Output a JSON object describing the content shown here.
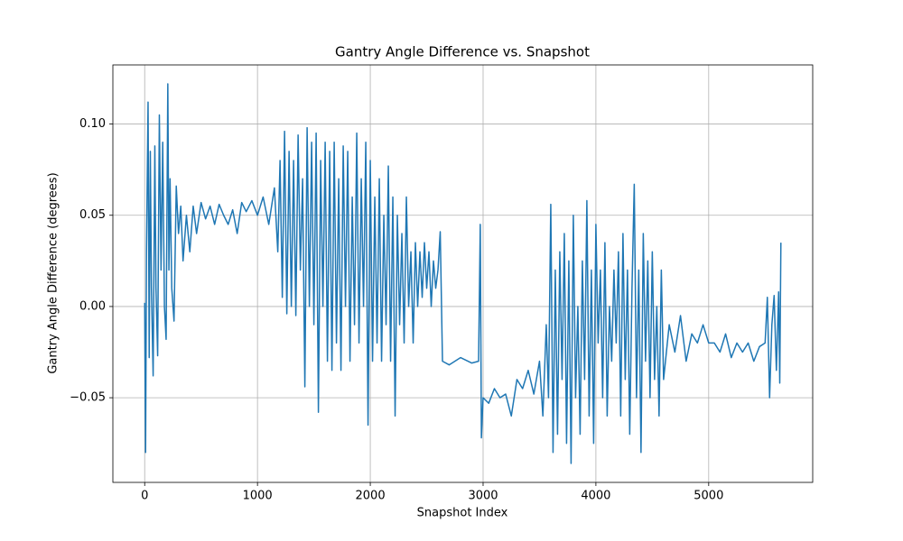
{
  "chart_data": {
    "type": "line",
    "title": "Gantry Angle Difference vs. Snapshot",
    "x_label": "Snapshot Index",
    "y_label": "Gantry Angle Difference (degrees)",
    "grid": true,
    "xlim": [
      -282,
      5922
    ],
    "ylim": [
      -0.0964,
      0.1324
    ],
    "xticks": [
      0,
      1000,
      2000,
      3000,
      4000,
      5000
    ],
    "yticks": [
      {
        "value": -0.05,
        "label": "−0.05"
      },
      {
        "value": 0,
        "label": "0.00"
      },
      {
        "value": 0.05,
        "label": "0.05"
      },
      {
        "value": 0.1,
        "label": "0.10"
      }
    ],
    "x": [
      0,
      8,
      16,
      30,
      40,
      50,
      60,
      75,
      90,
      100,
      115,
      130,
      145,
      160,
      175,
      190,
      205,
      215,
      225,
      240,
      260,
      280,
      300,
      320,
      340,
      370,
      400,
      430,
      460,
      500,
      540,
      580,
      620,
      660,
      700,
      740,
      780,
      820,
      860,
      900,
      950,
      1000,
      1050,
      1100,
      1150,
      1180,
      1200,
      1220,
      1240,
      1260,
      1280,
      1300,
      1320,
      1340,
      1360,
      1380,
      1400,
      1420,
      1440,
      1460,
      1480,
      1500,
      1520,
      1540,
      1560,
      1580,
      1600,
      1620,
      1640,
      1660,
      1680,
      1700,
      1720,
      1740,
      1760,
      1780,
      1800,
      1820,
      1840,
      1860,
      1880,
      1900,
      1920,
      1940,
      1960,
      1980,
      2000,
      2020,
      2040,
      2060,
      2080,
      2100,
      2120,
      2140,
      2160,
      2180,
      2200,
      2220,
      2240,
      2260,
      2280,
      2300,
      2320,
      2340,
      2360,
      2380,
      2400,
      2420,
      2440,
      2460,
      2480,
      2500,
      2520,
      2540,
      2560,
      2580,
      2600,
      2620,
      2640,
      2700,
      2800,
      2900,
      2960,
      2975,
      2985,
      3000,
      3050,
      3100,
      3150,
      3200,
      3250,
      3300,
      3350,
      3400,
      3450,
      3500,
      3530,
      3560,
      3580,
      3600,
      3620,
      3640,
      3660,
      3680,
      3700,
      3720,
      3740,
      3760,
      3780,
      3800,
      3820,
      3840,
      3860,
      3880,
      3900,
      3920,
      3940,
      3960,
      3980,
      4000,
      4020,
      4040,
      4060,
      4080,
      4100,
      4120,
      4140,
      4160,
      4180,
      4200,
      4220,
      4240,
      4260,
      4280,
      4300,
      4320,
      4340,
      4360,
      4380,
      4400,
      4420,
      4440,
      4460,
      4480,
      4500,
      4520,
      4540,
      4560,
      4580,
      4600,
      4650,
      4700,
      4750,
      4800,
      4850,
      4900,
      4950,
      5000,
      5050,
      5100,
      5150,
      5200,
      5250,
      5300,
      5350,
      5400,
      5450,
      5500,
      5520,
      5540,
      5560,
      5580,
      5600,
      5620,
      5630,
      5640
    ],
    "series": [
      {
        "color": "#1f77b4",
        "values": [
          0.002,
          -0.08,
          0.03,
          0.112,
          -0.028,
          0.085,
          0.01,
          -0.038,
          0.088,
          0.01,
          -0.027,
          0.105,
          0.02,
          0.09,
          0.0,
          -0.018,
          0.122,
          0.02,
          0.07,
          0.01,
          -0.008,
          0.066,
          0.04,
          0.055,
          0.025,
          0.05,
          0.03,
          0.055,
          0.04,
          0.057,
          0.048,
          0.055,
          0.045,
          0.056,
          0.05,
          0.045,
          0.053,
          0.04,
          0.057,
          0.052,
          0.058,
          0.05,
          0.06,
          0.045,
          0.065,
          0.03,
          0.08,
          0.005,
          0.096,
          -0.004,
          0.085,
          0.0,
          0.08,
          -0.005,
          0.094,
          0.02,
          0.07,
          -0.044,
          0.098,
          0.0,
          0.09,
          -0.01,
          0.095,
          -0.058,
          0.08,
          0.0,
          0.09,
          -0.03,
          0.085,
          -0.035,
          0.09,
          -0.02,
          0.07,
          -0.035,
          0.088,
          0.0,
          0.085,
          -0.03,
          0.06,
          -0.01,
          0.095,
          -0.02,
          0.07,
          0.0,
          0.09,
          -0.065,
          0.08,
          -0.03,
          0.06,
          -0.02,
          0.07,
          -0.03,
          0.05,
          -0.01,
          0.077,
          -0.03,
          0.06,
          -0.06,
          0.05,
          -0.01,
          0.04,
          -0.02,
          0.06,
          0.0,
          0.03,
          -0.02,
          0.035,
          0.0,
          0.03,
          0.005,
          0.035,
          0.01,
          0.03,
          0.0,
          0.025,
          0.01,
          0.02,
          0.041,
          -0.03,
          -0.032,
          -0.028,
          -0.031,
          -0.03,
          0.045,
          -0.072,
          -0.05,
          -0.053,
          -0.045,
          -0.05,
          -0.048,
          -0.06,
          -0.04,
          -0.045,
          -0.035,
          -0.048,
          -0.03,
          -0.06,
          -0.01,
          -0.05,
          0.056,
          -0.08,
          0.02,
          -0.07,
          0.03,
          -0.04,
          0.04,
          -0.075,
          0.025,
          -0.086,
          0.05,
          -0.05,
          0.0,
          -0.07,
          0.025,
          -0.04,
          0.058,
          -0.06,
          0.02,
          -0.075,
          0.045,
          -0.02,
          0.02,
          -0.05,
          0.035,
          -0.06,
          0.0,
          -0.03,
          0.02,
          -0.02,
          0.03,
          -0.06,
          0.04,
          -0.04,
          0.02,
          -0.07,
          0.01,
          0.067,
          -0.05,
          0.02,
          -0.08,
          0.04,
          -0.03,
          0.025,
          -0.05,
          0.03,
          -0.04,
          0.0,
          -0.06,
          0.02,
          -0.04,
          -0.01,
          -0.025,
          -0.005,
          -0.03,
          -0.015,
          -0.02,
          -0.01,
          -0.02,
          -0.02,
          -0.025,
          -0.015,
          -0.028,
          -0.02,
          -0.025,
          -0.02,
          -0.03,
          -0.022,
          -0.02,
          0.005,
          -0.05,
          -0.01,
          0.006,
          -0.035,
          0.008,
          -0.042,
          0.035
        ]
      }
    ]
  }
}
